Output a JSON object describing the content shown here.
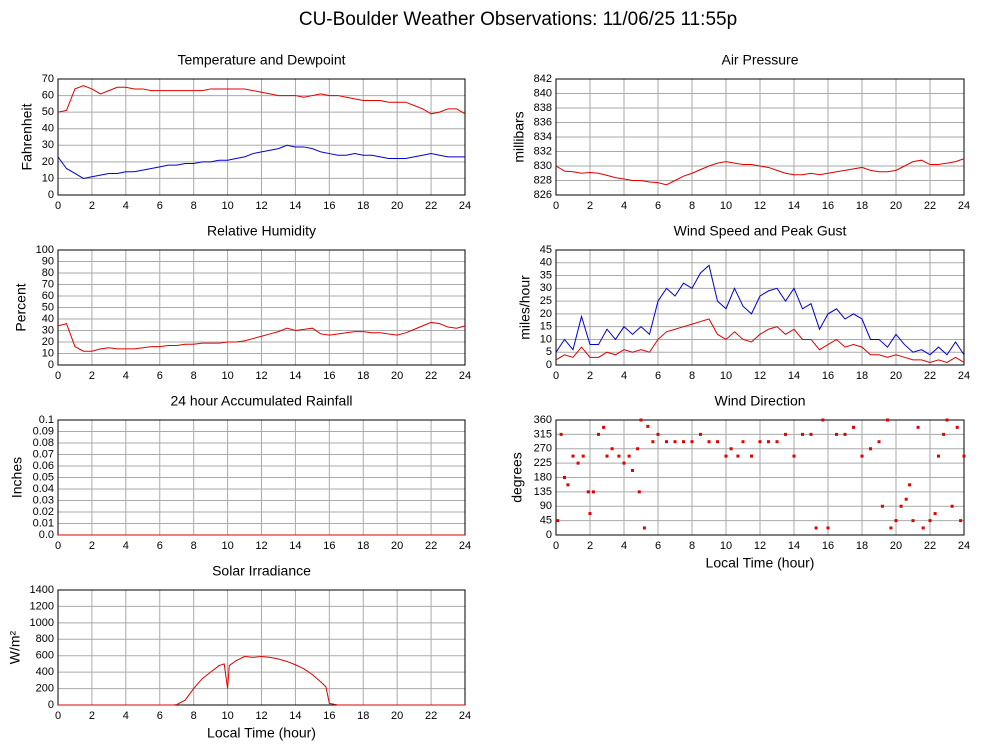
{
  "title": "CU-Boulder Weather Observations: 11/06/25 11:55p",
  "chart_data": [
    {
      "type": "line",
      "title": "Temperature and Dewpoint",
      "ylabel": "Fahrenheit",
      "x": [
        0,
        0.5,
        1,
        1.5,
        2,
        2.5,
        3,
        3.5,
        4,
        4.5,
        5,
        5.5,
        6,
        6.5,
        7,
        7.5,
        8,
        8.5,
        9,
        9.5,
        10,
        10.5,
        11,
        11.5,
        12,
        12.5,
        13,
        13.5,
        14,
        14.5,
        15,
        15.5,
        16,
        16.5,
        17,
        17.5,
        18,
        18.5,
        19,
        19.5,
        20,
        20.5,
        21,
        21.5,
        22,
        22.5,
        23,
        23.5,
        24
      ],
      "series": [
        {
          "name": "Temperature",
          "color": "#e00000",
          "values": [
            50,
            51,
            64,
            66,
            64,
            61,
            63,
            65,
            65,
            64,
            64,
            63,
            63,
            63,
            63,
            63,
            63,
            63,
            64,
            64,
            64,
            64,
            64,
            63,
            62,
            61,
            60,
            60,
            60,
            59,
            60,
            61,
            60,
            60,
            59,
            58,
            57,
            57,
            57,
            56,
            56,
            56,
            54,
            52,
            49,
            50,
            52,
            52,
            49
          ]
        },
        {
          "name": "Dewpoint",
          "color": "#0000d0",
          "values": [
            23,
            16,
            13,
            10,
            11,
            12,
            13,
            13,
            14,
            14,
            15,
            16,
            17,
            18,
            18,
            19,
            19,
            20,
            20,
            21,
            21,
            22,
            23,
            25,
            26,
            27,
            28,
            30,
            29,
            29,
            28,
            26,
            25,
            24,
            24,
            25,
            24,
            24,
            23,
            22,
            22,
            22,
            23,
            24,
            25,
            24,
            23,
            23,
            23
          ]
        }
      ],
      "xlim": [
        0,
        24
      ],
      "ylim": [
        0,
        70
      ],
      "xticks": [
        0,
        2,
        4,
        6,
        8,
        10,
        12,
        14,
        16,
        18,
        20,
        22,
        24
      ],
      "yticks": [
        0,
        10,
        20,
        30,
        40,
        50,
        60,
        70
      ],
      "grid": true
    },
    {
      "type": "line",
      "title": "Air Pressure",
      "ylabel": "millibars",
      "x": [
        0,
        0.5,
        1,
        1.5,
        2,
        2.5,
        3,
        3.5,
        4,
        4.5,
        5,
        5.5,
        6,
        6.5,
        7,
        7.5,
        8,
        8.5,
        9,
        9.5,
        10,
        10.5,
        11,
        11.5,
        12,
        12.5,
        13,
        13.5,
        14,
        14.5,
        15,
        15.5,
        16,
        16.5,
        17,
        17.5,
        18,
        18.5,
        19,
        19.5,
        20,
        20.5,
        21,
        21.5,
        22,
        22.5,
        23,
        23.5,
        24
      ],
      "series": [
        {
          "name": "Pressure",
          "color": "#e00000",
          "values": [
            830,
            829.3,
            829.2,
            829,
            829.1,
            829,
            828.7,
            828.4,
            828.2,
            828,
            828,
            827.8,
            827.7,
            827.4,
            828,
            828.6,
            829,
            829.5,
            830,
            830.4,
            830.6,
            830.4,
            830.2,
            830.2,
            830,
            829.8,
            829.4,
            829,
            828.8,
            828.8,
            829,
            828.8,
            829,
            829.2,
            829.4,
            829.6,
            829.8,
            829.4,
            829.2,
            829.2,
            829.4,
            830,
            830.6,
            830.8,
            830.2,
            830.2,
            830.4,
            830.6,
            831
          ]
        }
      ],
      "xlim": [
        0,
        24
      ],
      "ylim": [
        826,
        842
      ],
      "xticks": [
        0,
        2,
        4,
        6,
        8,
        10,
        12,
        14,
        16,
        18,
        20,
        22,
        24
      ],
      "yticks": [
        826,
        828,
        830,
        832,
        834,
        836,
        838,
        840,
        842
      ],
      "grid": true
    },
    {
      "type": "line",
      "title": "Relative Humidity",
      "ylabel": "Percent",
      "x": [
        0,
        0.5,
        1,
        1.5,
        2,
        2.5,
        3,
        3.5,
        4,
        4.5,
        5,
        5.5,
        6,
        6.5,
        7,
        7.5,
        8,
        8.5,
        9,
        9.5,
        10,
        10.5,
        11,
        11.5,
        12,
        12.5,
        13,
        13.5,
        14,
        14.5,
        15,
        15.5,
        16,
        16.5,
        17,
        17.5,
        18,
        18.5,
        19,
        19.5,
        20,
        20.5,
        21,
        21.5,
        22,
        22.5,
        23,
        23.5,
        24
      ],
      "series": [
        {
          "name": "Relative Humidity",
          "color": "#e00000",
          "values": [
            34,
            36,
            16,
            12,
            12,
            14,
            15,
            14,
            14,
            14,
            15,
            16,
            16,
            17,
            17,
            18,
            18,
            19,
            19,
            19,
            20,
            20,
            21,
            23,
            25,
            27,
            29,
            32,
            30,
            31,
            32,
            27,
            26,
            27,
            28,
            29,
            29,
            28,
            28,
            27,
            26,
            28,
            31,
            34,
            37,
            36,
            33,
            32,
            34
          ]
        }
      ],
      "xlim": [
        0,
        24
      ],
      "ylim": [
        0,
        100
      ],
      "xticks": [
        0,
        2,
        4,
        6,
        8,
        10,
        12,
        14,
        16,
        18,
        20,
        22,
        24
      ],
      "yticks": [
        0,
        10,
        20,
        30,
        40,
        50,
        60,
        70,
        80,
        90,
        100
      ],
      "grid": true
    },
    {
      "type": "line",
      "title": "Wind Speed and Peak Gust",
      "ylabel": "miles/hour",
      "x": [
        0,
        0.5,
        1,
        1.5,
        2,
        2.5,
        3,
        3.5,
        4,
        4.5,
        5,
        5.5,
        6,
        6.5,
        7,
        7.5,
        8,
        8.5,
        9,
        9.5,
        10,
        10.5,
        11,
        11.5,
        12,
        12.5,
        13,
        13.5,
        14,
        14.5,
        15,
        15.5,
        16,
        16.5,
        17,
        17.5,
        18,
        18.5,
        19,
        19.5,
        20,
        20.5,
        21,
        21.5,
        22,
        22.5,
        23,
        23.5,
        24
      ],
      "series": [
        {
          "name": "Peak Gust",
          "color": "#0000d0",
          "values": [
            5,
            10,
            6,
            19,
            8,
            8,
            14,
            10,
            15,
            12,
            15,
            12,
            25,
            30,
            27,
            32,
            30,
            36,
            39,
            25,
            22,
            30,
            23,
            20,
            27,
            29,
            30,
            25,
            30,
            22,
            24,
            14,
            20,
            22,
            18,
            20,
            18,
            10,
            10,
            7,
            12,
            8,
            5,
            6,
            4,
            7,
            4,
            9,
            4
          ]
        },
        {
          "name": "Wind Speed",
          "color": "#e00000",
          "values": [
            2,
            4,
            3,
            7,
            3,
            3,
            5,
            4,
            6,
            5,
            6,
            5,
            10,
            13,
            14,
            15,
            16,
            17,
            18,
            12,
            10,
            13,
            10,
            9,
            12,
            14,
            15,
            12,
            14,
            10,
            10,
            6,
            8,
            10,
            7,
            8,
            7,
            4,
            4,
            3,
            4,
            3,
            2,
            2,
            1,
            2,
            1,
            3,
            1
          ]
        }
      ],
      "xlim": [
        0,
        24
      ],
      "ylim": [
        0,
        45
      ],
      "xticks": [
        0,
        2,
        4,
        6,
        8,
        10,
        12,
        14,
        16,
        18,
        20,
        22,
        24
      ],
      "yticks": [
        0,
        5,
        10,
        15,
        20,
        25,
        30,
        35,
        40,
        45
      ],
      "grid": true
    },
    {
      "type": "line",
      "title": "24 hour Accumulated Rainfall",
      "ylabel": "Inches",
      "x": [
        0,
        24
      ],
      "series": [
        {
          "name": "Rainfall",
          "color": "#e00000",
          "values": [
            0,
            0
          ]
        }
      ],
      "xlim": [
        0,
        24
      ],
      "ylim": [
        0,
        0.1
      ],
      "xticks": [
        0,
        2,
        4,
        6,
        8,
        10,
        12,
        14,
        16,
        18,
        20,
        22,
        24
      ],
      "yticks": [
        {
          "value": 0,
          "label": "0.0"
        },
        0.01,
        0.02,
        0.03,
        0.04,
        0.05,
        0.06,
        0.07,
        0.08,
        0.09,
        0.1
      ],
      "grid": true
    },
    {
      "type": "scatter",
      "title": "Wind Direction",
      "ylabel": "degrees",
      "xlabel": "Local Time (hour)",
      "x": [
        0.1,
        0.3,
        0.5,
        0.7,
        1,
        1.3,
        1.6,
        1.9,
        2,
        2.2,
        2.5,
        2.8,
        3,
        3.3,
        3.7,
        4,
        4.3,
        4.5,
        4.8,
        4.9,
        5,
        5.2,
        5.4,
        5.7,
        6,
        6.5,
        7,
        7.5,
        8,
        8.5,
        9,
        9.5,
        10,
        10.3,
        10.7,
        11,
        11.5,
        12,
        12.5,
        13,
        13.5,
        14,
        14.5,
        15,
        15.3,
        15.7,
        16,
        16.5,
        17,
        17.5,
        18,
        18.5,
        19,
        19.2,
        19.5,
        19.7,
        20,
        20.3,
        20.6,
        20.8,
        21,
        21.3,
        21.6,
        22,
        22.3,
        22.5,
        22.8,
        23,
        23.3,
        23.6,
        23.8,
        24
      ],
      "series": [
        {
          "name": "Wind Direction",
          "color": "#e00000",
          "values": [
            45,
            315,
            180,
            157,
            247,
            225,
            247,
            135,
            67,
            135,
            315,
            337,
            247,
            270,
            247,
            225,
            247,
            202,
            270,
            135,
            360,
            22,
            340,
            292,
            315,
            292,
            292,
            292,
            292,
            315,
            292,
            292,
            247,
            270,
            247,
            292,
            247,
            292,
            292,
            292,
            315,
            247,
            315,
            315,
            22,
            360,
            22,
            315,
            315,
            337,
            247,
            270,
            292,
            90,
            360,
            22,
            45,
            90,
            112,
            157,
            45,
            337,
            22,
            45,
            67,
            247,
            315,
            360,
            90,
            337,
            45,
            247
          ]
        }
      ],
      "xlim": [
        0,
        24
      ],
      "ylim": [
        0,
        360
      ],
      "xticks": [
        0,
        2,
        4,
        6,
        8,
        10,
        12,
        14,
        16,
        18,
        20,
        22,
        24
      ],
      "yticks": [
        0,
        45,
        90,
        135,
        180,
        225,
        270,
        315,
        360
      ],
      "grid": true
    },
    {
      "type": "line",
      "title": "Solar Irradiance",
      "ylabel": "W/m²",
      "xlabel": "Local Time (hour)",
      "x": [
        0,
        6,
        6.8,
        7,
        7.5,
        8,
        8.5,
        9,
        9.5,
        9.8,
        10,
        10.1,
        10.5,
        11,
        11.5,
        12,
        12.5,
        13,
        13.5,
        14,
        14.5,
        15,
        15.5,
        15.8,
        16,
        16.5,
        24
      ],
      "series": [
        {
          "name": "Solar Irradiance",
          "color": "#e00000",
          "values": [
            0,
            0,
            0,
            5,
            60,
            200,
            320,
            400,
            480,
            500,
            200,
            480,
            540,
            590,
            580,
            590,
            580,
            560,
            530,
            490,
            440,
            370,
            280,
            220,
            20,
            0,
            0
          ]
        }
      ],
      "xlim": [
        0,
        24
      ],
      "ylim": [
        0,
        1400
      ],
      "xticks": [
        0,
        2,
        4,
        6,
        8,
        10,
        12,
        14,
        16,
        18,
        20,
        22,
        24
      ],
      "yticks": [
        0,
        200,
        400,
        600,
        800,
        1000,
        1200,
        1400
      ],
      "grid": true
    }
  ]
}
